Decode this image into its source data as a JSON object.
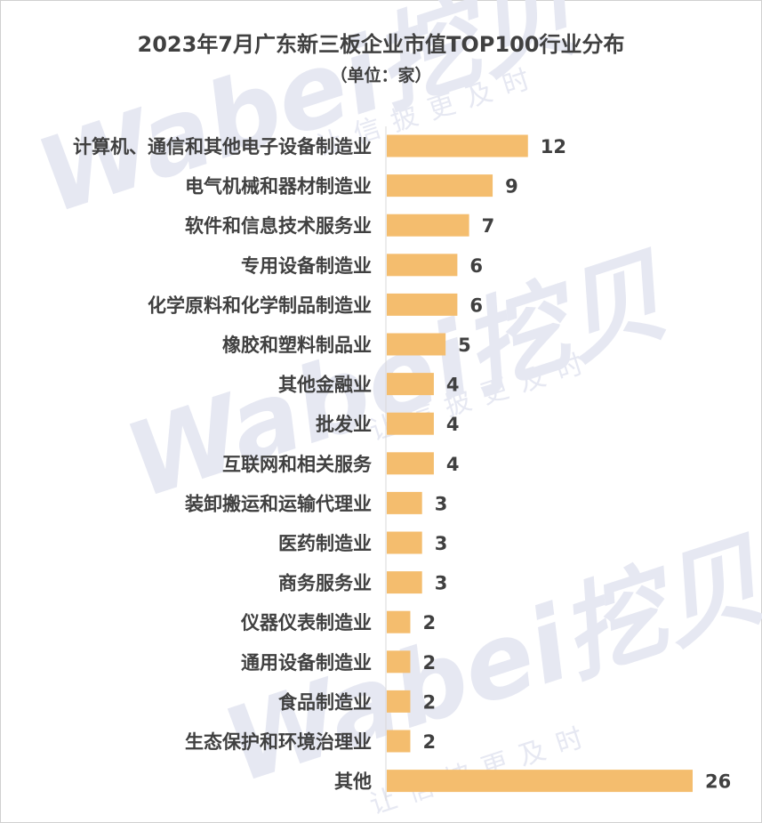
{
  "chart_data": {
    "type": "bar",
    "orientation": "horizontal",
    "title": "2023年7月广东新三板企业市值TOP100行业分布",
    "subtitle": "（单位：家）",
    "categories": [
      "计算机、通信和其他电子设备制造业",
      "电气机械和器材制造业",
      "软件和信息技术服务业",
      "专用设备制造业",
      "化学原料和化学制品制造业",
      "橡胶和塑料制品业",
      "其他金融业",
      "批发业",
      "互联网和相关服务",
      "装卸搬运和运输代理业",
      "医药制造业",
      "商务服务业",
      "仪器仪表制造业",
      "通用设备制造业",
      "食品制造业",
      "生态保护和环境治理业",
      "其他"
    ],
    "values": [
      12,
      9,
      7,
      6,
      6,
      5,
      4,
      4,
      4,
      3,
      3,
      3,
      2,
      2,
      2,
      2,
      26
    ],
    "xlim": [
      0,
      26
    ],
    "bar_color": "#F4BD6E",
    "grid": false,
    "legend": "none",
    "data_labels": true
  },
  "watermark": {
    "brand": "Wabei挖贝",
    "tagline": "让信披更及时",
    "color": "#E6E8F2"
  }
}
